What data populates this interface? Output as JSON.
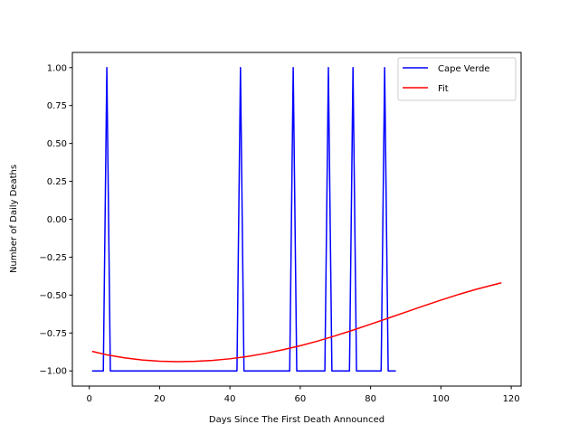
{
  "chart_data": {
    "type": "line",
    "xlabel": "Days Since The First Death Announced",
    "ylabel": "Number of Daily Deaths",
    "xlim": [
      -4.8,
      122.8
    ],
    "ylim": [
      -1.1,
      1.1
    ],
    "xticks": [
      0,
      20,
      40,
      60,
      80,
      100,
      120
    ],
    "yticks": [
      -1.0,
      -0.75,
      -0.5,
      -0.25,
      0.0,
      0.25,
      0.5,
      0.75,
      1.0
    ],
    "ytick_labels": [
      "−1.00",
      "−0.75",
      "−0.50",
      "−0.25",
      "0.00",
      "0.25",
      "0.50",
      "0.75",
      "1.00"
    ],
    "xtick_labels": [
      "0",
      "20",
      "40",
      "60",
      "80",
      "100",
      "120"
    ],
    "grid": false,
    "legend_position": "top-right",
    "series": [
      {
        "name": "Cape Verde",
        "color": "#0000ff",
        "x": [
          1,
          2,
          3,
          4,
          5,
          6,
          7,
          8,
          9,
          10,
          11,
          12,
          13,
          14,
          15,
          16,
          17,
          18,
          19,
          20,
          21,
          22,
          23,
          24,
          25,
          26,
          27,
          28,
          29,
          30,
          31,
          32,
          33,
          34,
          35,
          36,
          37,
          38,
          39,
          40,
          41,
          42,
          43,
          44,
          45,
          46,
          47,
          48,
          49,
          50,
          51,
          52,
          53,
          54,
          55,
          56,
          57,
          58,
          59,
          60,
          61,
          62,
          63,
          64,
          65,
          66,
          67,
          68,
          69,
          70,
          71,
          72,
          73,
          74,
          75,
          76,
          77,
          78,
          79,
          80,
          81,
          82,
          83,
          84,
          85,
          86,
          87
        ],
        "y": [
          -1,
          -1,
          -1,
          -1,
          1,
          -1,
          -1,
          -1,
          -1,
          -1,
          -1,
          -1,
          -1,
          -1,
          -1,
          -1,
          -1,
          -1,
          -1,
          -1,
          -1,
          -1,
          -1,
          -1,
          -1,
          -1,
          -1,
          -1,
          -1,
          -1,
          -1,
          -1,
          -1,
          -1,
          -1,
          -1,
          -1,
          -1,
          -1,
          -1,
          -1,
          -1,
          1,
          -1,
          -1,
          -1,
          -1,
          -1,
          -1,
          -1,
          -1,
          -1,
          -1,
          -1,
          -1,
          -1,
          -1,
          1,
          -1,
          -1,
          -1,
          -1,
          -1,
          -1,
          -1,
          -1,
          -1,
          1,
          -1,
          -1,
          -1,
          -1,
          -1,
          -1,
          1,
          -1,
          -1,
          -1,
          -1,
          -1,
          -1,
          -1,
          -1,
          1,
          -1,
          -1,
          -1
        ]
      },
      {
        "name": "Fit",
        "color": "#ff0000",
        "x": [
          1,
          5,
          10,
          15,
          20,
          25,
          30,
          35,
          40,
          45,
          50,
          55,
          60,
          65,
          70,
          75,
          80,
          85,
          90,
          95,
          100,
          105,
          110,
          117
        ],
        "y": [
          -0.872,
          -0.894,
          -0.914,
          -0.928,
          -0.936,
          -0.939,
          -0.937,
          -0.931,
          -0.92,
          -0.905,
          -0.885,
          -0.861,
          -0.834,
          -0.803,
          -0.768,
          -0.731,
          -0.692,
          -0.652,
          -0.612,
          -0.572,
          -0.533,
          -0.496,
          -0.462,
          -0.42
        ]
      }
    ]
  }
}
